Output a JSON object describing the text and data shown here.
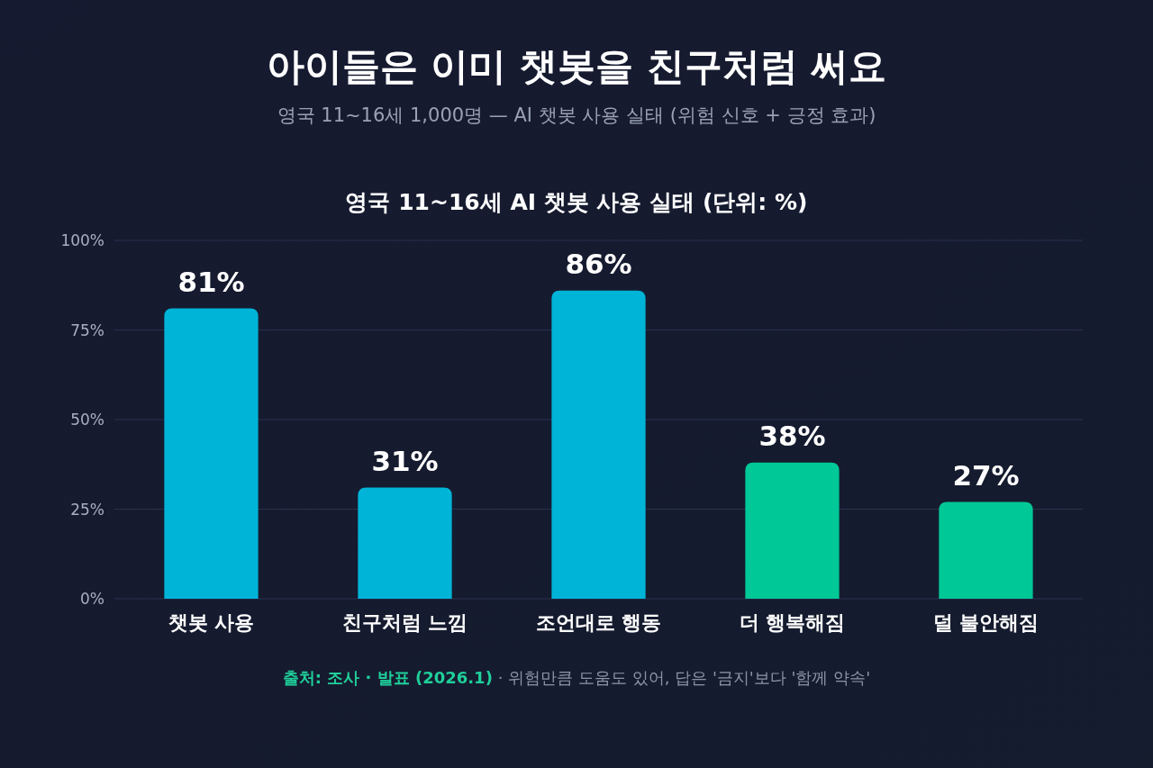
{
  "chart_data": {
    "type": "bar",
    "title": "아이들은 이미 챗봇을 친구처럼 써요",
    "subtitle": "영국 11~16세 1,000명 — AI 챗봇 사용 실태 (위험 신호 + 긍정 효과)",
    "categories": [
      "챗봇 사용",
      "친구처럼 느낌",
      "조언대로 행동",
      "더 행복해짐",
      "덜 불안해짐"
    ],
    "values": [
      81,
      31,
      86,
      38,
      27
    ],
    "colors": [
      "#00b4d8",
      "#00b4d8",
      "#00b4d8",
      "#00c896",
      "#00c896"
    ],
    "value_labels": [
      "81%",
      "31%",
      "86%",
      "38%",
      "27%"
    ],
    "ylim": [
      0,
      100
    ],
    "yticks": [
      {
        "value": 0,
        "label": "0%"
      },
      {
        "value": 25,
        "label": "25%"
      },
      {
        "value": 50,
        "label": "50%"
      },
      {
        "value": 75,
        "label": "75%"
      },
      {
        "value": 100,
        "label": "100%"
      }
    ],
    "grid": "y",
    "annotations": [
      "영국 11~16세 AI 챗봇 사용 실태 (단위: %)",
      "출처: 조사 · 발표 (2026.1)",
      "· 위험만큼 도움도 있어, 답은 '금지'보다 '함께 약속'"
    ]
  }
}
